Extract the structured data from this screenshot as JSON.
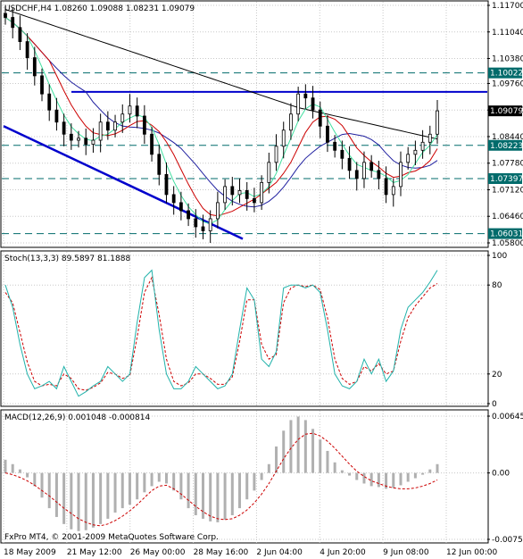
{
  "colors": {
    "grid": "#c8c8c8",
    "level_dash": "#006b6b",
    "trendline": "#0000cc",
    "ma_fast": "#40e0a0",
    "ma_mid": "#cc0000",
    "ma_slow": "#2020a0",
    "ma_long": "#000000",
    "stoch_main": "#20b2aa",
    "stoch_signal": "#cc0000",
    "macd_hist": "#b0b0b0",
    "macd_signal": "#cc0000",
    "price_tag_bg": "#006b6b",
    "current_tag_bg": "#000000"
  },
  "price_panel": {
    "title": "USDCHF,H4  1.08260 1.09088 1.08231 1.09079",
    "axis_labels": [
      "1.11700",
      "1.11040",
      "1.10380",
      "1.09760",
      "1.09100",
      "1.08440",
      "1.07780",
      "1.07120",
      "1.06460",
      "1.05800"
    ],
    "tags": [
      "1.10022",
      "1.09079",
      "1.08223",
      "1.07397",
      "1.06031"
    ]
  },
  "stoch_panel": {
    "title": "Stoch(13,3,3) 89.5897 81.1888",
    "axis_labels": [
      "100",
      "80",
      "20",
      "0"
    ]
  },
  "macd_panel": {
    "title": "MACD(12,26,9) 0.001048 -0.000814",
    "axis_labels": [
      "0.00645",
      "0.00",
      "-0.00754"
    ]
  },
  "footer": {
    "copyright": "FxPro MT4, © 2001-2009 MetaQuotes Software Corp."
  },
  "time_axis": [
    "18 May 2009",
    "21 May 12:00",
    "26 May 00:00",
    "28 May 16:00",
    "2 Jun 04:00",
    "4 Jun 20:00",
    "9 Jun 08:00",
    "12 Jun 00:00"
  ],
  "chart_data": [
    {
      "type": "candlestick",
      "title": "USDCHF,H4  1.08260 1.09088 1.08231 1.09079",
      "ylim": [
        1.058,
        1.117
      ],
      "current": {
        "open": 1.0826,
        "high": 1.09088,
        "low": 1.08231,
        "close": 1.09079
      },
      "horizontal_levels": [
        1.10022,
        1.08223,
        1.07397,
        1.06031
      ],
      "resistance_line": 1.0955,
      "close_series": [
        1.114,
        1.1115,
        1.108,
        1.104,
        1.0995,
        1.095,
        1.091,
        1.088,
        1.085,
        1.0835,
        1.084,
        1.0825,
        1.0835,
        1.088,
        1.086,
        1.088,
        1.09,
        1.092,
        1.0895,
        1.085,
        1.08,
        1.075,
        1.07,
        1.068,
        1.066,
        1.064,
        1.062,
        1.061,
        1.064,
        1.068,
        1.072,
        1.07,
        1.071,
        1.069,
        1.068,
        1.073,
        1.078,
        1.082,
        1.086,
        1.09,
        1.095,
        1.094,
        1.091,
        1.087,
        1.083,
        1.081,
        1.079,
        1.076,
        1.074,
        1.078,
        1.076,
        1.074,
        1.07,
        1.072,
        1.078,
        1.08,
        1.081,
        1.083,
        1.085,
        1.0908
      ]
    },
    {
      "type": "line",
      "title": "Stoch(13,3,3) 89.5897 81.1888",
      "ylim": [
        0,
        100
      ],
      "levels": [
        20,
        80
      ],
      "series": [
        {
          "name": "main",
          "values": [
            80,
            65,
            40,
            20,
            10,
            12,
            15,
            10,
            25,
            15,
            5,
            8,
            12,
            15,
            25,
            20,
            15,
            20,
            55,
            85,
            90,
            50,
            20,
            10,
            10,
            15,
            25,
            20,
            15,
            10,
            12,
            20,
            50,
            78,
            70,
            30,
            25,
            35,
            78,
            80,
            80,
            78,
            80,
            75,
            50,
            20,
            12,
            10,
            15,
            30,
            20,
            30,
            15,
            22,
            50,
            65,
            70,
            75,
            82,
            90
          ]
        },
        {
          "name": "signal",
          "values": [
            75,
            68,
            48,
            28,
            15,
            12,
            13,
            12,
            20,
            17,
            10,
            9,
            11,
            14,
            21,
            20,
            17,
            19,
            45,
            75,
            85,
            60,
            30,
            15,
            12,
            14,
            20,
            20,
            17,
            13,
            13,
            18,
            42,
            70,
            70,
            40,
            30,
            33,
            68,
            78,
            80,
            79,
            80,
            77,
            58,
            30,
            17,
            13,
            15,
            25,
            22,
            27,
            20,
            22,
            42,
            58,
            66,
            72,
            78,
            81
          ]
        }
      ]
    },
    {
      "type": "bar",
      "title": "MACD(12,26,9) 0.001048 -0.000814",
      "ylim": [
        -0.00754,
        0.00645
      ],
      "series": [
        {
          "name": "main",
          "values": [
            0.0015,
            0.001,
            0.0004,
            -0.0005,
            -0.0015,
            -0.0028,
            -0.004,
            -0.005,
            -0.0058,
            -0.0064,
            -0.0066,
            -0.0065,
            -0.0062,
            -0.0058,
            -0.0052,
            -0.0045,
            -0.004,
            -0.0036,
            -0.003,
            -0.0022,
            -0.0015,
            -0.001,
            -0.0012,
            -0.002,
            -0.003,
            -0.004,
            -0.0048,
            -0.0052,
            -0.0055,
            -0.0056,
            -0.0053,
            -0.0048,
            -0.004,
            -0.003,
            -0.002,
            -0.0008,
            0.001,
            0.003,
            0.0048,
            0.006,
            0.0064,
            0.006,
            0.005,
            0.0038,
            0.0025,
            0.0012,
            0.0003,
            -0.0003,
            -0.0008,
            -0.0012,
            -0.0015,
            -0.0016,
            -0.0018,
            -0.0017,
            -0.0014,
            -0.001,
            -0.0006,
            -0.0002,
            0.0004,
            0.001
          ]
        },
        {
          "name": "signal",
          "values": [
            0.0,
            -0.0002,
            -0.0005,
            -0.0009,
            -0.0014,
            -0.002,
            -0.0026,
            -0.0033,
            -0.004,
            -0.0046,
            -0.0052,
            -0.0056,
            -0.0059,
            -0.006,
            -0.0058,
            -0.0054,
            -0.0049,
            -0.0043,
            -0.0036,
            -0.0028,
            -0.002,
            -0.0015,
            -0.0014,
            -0.0018,
            -0.0024,
            -0.0031,
            -0.0038,
            -0.0044,
            -0.0049,
            -0.0052,
            -0.0053,
            -0.0052,
            -0.0048,
            -0.0042,
            -0.0034,
            -0.0024,
            -0.0012,
            0.0002,
            0.0016,
            0.0028,
            0.0038,
            0.0044,
            0.0045,
            0.0042,
            0.0036,
            0.0028,
            0.0019,
            0.001,
            0.0002,
            -0.0004,
            -0.0009,
            -0.0012,
            -0.0015,
            -0.0017,
            -0.0018,
            -0.0018,
            -0.0017,
            -0.0015,
            -0.0012,
            -0.0008
          ]
        }
      ]
    }
  ]
}
